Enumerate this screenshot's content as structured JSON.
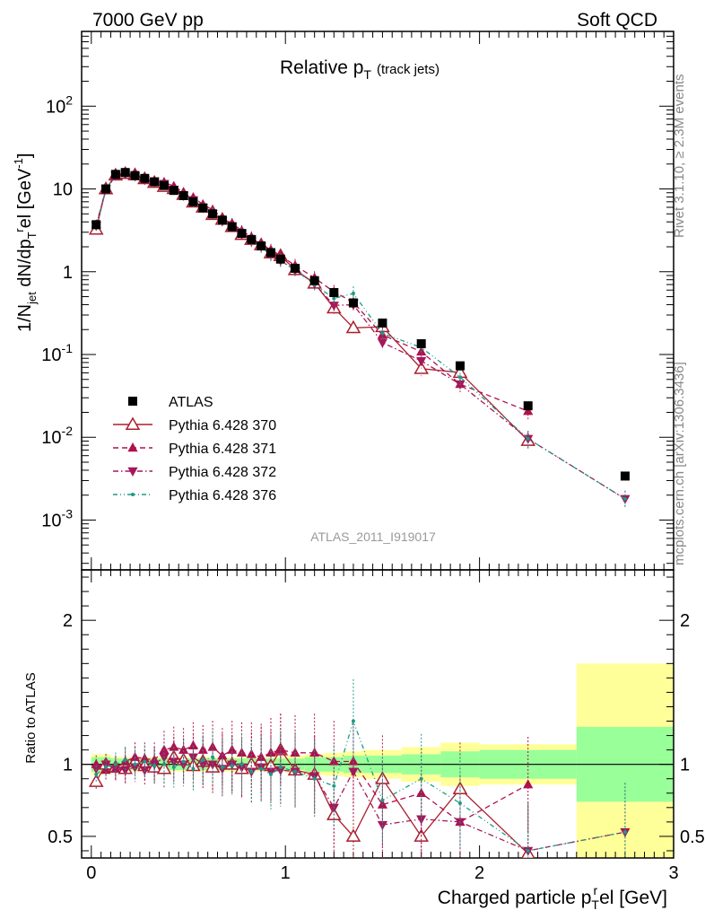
{
  "header": {
    "left": "7000 GeV pp",
    "right": "Soft QCD"
  },
  "side_text": {
    "rivet": "Rivet 3.1.10, ≥ 2.3M events",
    "mcplots": "mcplots.cern.ch [arXiv:1306.3436]"
  },
  "chart_data": {
    "type": "scatter",
    "title": "Relative p",
    "title_sub": "T",
    "title_suffix": "(track jets)",
    "analysis_tag": "ATLAS_2011_I919017",
    "xlabel": "Charged particle p",
    "xlabel_sub": "T",
    "xlabel_sup": "r",
    "xlabel_suffix": "el [GeV]",
    "ylabel_parts": [
      "1/N",
      "jet",
      " dN/dp",
      "T",
      "r",
      "el [GeV",
      "-1",
      "]"
    ],
    "ratio_ylabel": "Ratio to ATLAS",
    "xlim": [
      -0.05,
      3.0
    ],
    "ylim": [
      0.00025,
      800
    ],
    "yscale": "log",
    "ratio_ylim": [
      0.35,
      2.35
    ],
    "x_ticks": [
      "0",
      "1",
      "2",
      "3"
    ],
    "y_ticks": [
      {
        "base": "10",
        "exp": "-3",
        "v": 0.001
      },
      {
        "base": "10",
        "exp": "-2",
        "v": 0.01
      },
      {
        "base": "10",
        "exp": "-1",
        "v": 0.1
      },
      {
        "base": "1",
        "exp": "",
        "v": 1
      },
      {
        "base": "10",
        "exp": "",
        "v": 10
      },
      {
        "base": "10",
        "exp": "2",
        "v": 100
      }
    ],
    "ratio_ticks": [
      "0.5",
      "1",
      "2"
    ],
    "x": [
      0.025,
      0.075,
      0.125,
      0.175,
      0.225,
      0.275,
      0.325,
      0.375,
      0.425,
      0.475,
      0.525,
      0.575,
      0.625,
      0.675,
      0.725,
      0.775,
      0.825,
      0.875,
      0.925,
      0.975,
      1.05,
      1.15,
      1.25,
      1.35,
      1.5,
      1.7,
      1.9,
      2.25,
      2.75
    ],
    "x_bins": [
      [
        0.0,
        0.05
      ],
      [
        0.05,
        0.1
      ],
      [
        0.1,
        0.15
      ],
      [
        0.15,
        0.2
      ],
      [
        0.2,
        0.25
      ],
      [
        0.25,
        0.3
      ],
      [
        0.3,
        0.35
      ],
      [
        0.35,
        0.4
      ],
      [
        0.4,
        0.45
      ],
      [
        0.45,
        0.5
      ],
      [
        0.5,
        0.55
      ],
      [
        0.55,
        0.6
      ],
      [
        0.6,
        0.65
      ],
      [
        0.65,
        0.7
      ],
      [
        0.7,
        0.75
      ],
      [
        0.75,
        0.8
      ],
      [
        0.8,
        0.85
      ],
      [
        0.85,
        0.9
      ],
      [
        0.9,
        0.95
      ],
      [
        0.95,
        1.0
      ],
      [
        1.0,
        1.1
      ],
      [
        1.1,
        1.2
      ],
      [
        1.2,
        1.3
      ],
      [
        1.3,
        1.4
      ],
      [
        1.4,
        1.6
      ],
      [
        1.6,
        1.8
      ],
      [
        1.8,
        2.0
      ],
      [
        2.0,
        2.5
      ],
      [
        2.5,
        3.0
      ]
    ],
    "band_inner": [
      0.05,
      0.05,
      0.04,
      0.04,
      0.04,
      0.04,
      0.04,
      0.04,
      0.04,
      0.04,
      0.04,
      0.04,
      0.04,
      0.04,
      0.04,
      0.04,
      0.04,
      0.04,
      0.04,
      0.04,
      0.04,
      0.05,
      0.05,
      0.06,
      0.06,
      0.07,
      0.09,
      0.1,
      0.26
    ],
    "band_outer": [
      0.07,
      0.07,
      0.05,
      0.05,
      0.05,
      0.05,
      0.05,
      0.05,
      0.05,
      0.05,
      0.05,
      0.05,
      0.05,
      0.05,
      0.05,
      0.05,
      0.05,
      0.05,
      0.05,
      0.05,
      0.06,
      0.07,
      0.08,
      0.09,
      0.1,
      0.12,
      0.15,
      0.14,
      0.7
    ],
    "series": [
      {
        "name": "ATLAS",
        "kind": "data",
        "color": "#000000",
        "values": [
          3.7,
          10.0,
          15.0,
          15.8,
          14.5,
          13.4,
          12.2,
          11.0,
          9.6,
          8.3,
          7.0,
          5.9,
          5.0,
          4.2,
          3.5,
          2.9,
          2.45,
          2.05,
          1.7,
          1.42,
          1.1,
          0.78,
          0.56,
          0.42,
          0.24,
          0.135,
          0.073,
          0.024,
          0.0034
        ]
      },
      {
        "name": "Pythia 6.428 370",
        "kind": "mc",
        "color": "#aa1f2e",
        "marker": "open-triangle-up",
        "dash": "",
        "ratio": [
          0.88,
          1.0,
          0.98,
          0.97,
          1.02,
          0.99,
          0.98,
          0.97,
          1.05,
          1.03,
          0.99,
          1.02,
          0.98,
          1.02,
          1.0,
          0.97,
          1.0,
          1.03,
          0.99,
          1.1,
          0.96,
          0.93,
          0.65,
          0.5,
          0.9,
          0.5,
          0.83,
          0.38,
          null
        ]
      },
      {
        "name": "Pythia 6.428 371",
        "kind": "mc",
        "color": "#b0104e",
        "marker": "filled-triangle-up",
        "dash": "6,4",
        "ratio": [
          1.0,
          0.96,
          0.97,
          1.02,
          1.05,
          1.04,
          1.03,
          1.1,
          1.12,
          1.1,
          1.13,
          1.1,
          1.12,
          1.06,
          1.1,
          1.08,
          1.07,
          1.05,
          1.08,
          1.1,
          1.08,
          1.08,
          1.02,
          1.02,
          0.72,
          0.8,
          0.6,
          0.86,
          null
        ]
      },
      {
        "name": "Pythia 6.428 372",
        "kind": "mc",
        "color": "#a5175a",
        "marker": "filled-triangle-down",
        "dash": "6,3,1.5,3",
        "ratio": [
          0.97,
          1.0,
          0.97,
          0.96,
          0.98,
          0.96,
          1.0,
          1.05,
          1.02,
          1.0,
          1.05,
          1.0,
          1.0,
          0.97,
          1.0,
          0.98,
          0.95,
          0.98,
          0.95,
          0.96,
          0.95,
          0.92,
          0.7,
          0.95,
          0.58,
          0.62,
          0.6,
          0.4,
          0.53
        ]
      },
      {
        "name": "Pythia 6.428 376",
        "kind": "mc",
        "color": "#1e9a86",
        "marker": "small-dot",
        "dash": "5,3,1,3,1,3",
        "ratio": [
          0.93,
          0.98,
          1.0,
          1.03,
          1.0,
          1.02,
          0.99,
          1.0,
          0.98,
          1.02,
          0.97,
          1.03,
          1.05,
          0.98,
          0.99,
          1.0,
          0.95,
          0.97,
          0.93,
          0.98,
          0.95,
          0.9,
          0.85,
          1.3,
          0.75,
          0.9,
          0.73,
          0.4,
          0.53
        ]
      }
    ],
    "legend_position": "center-left"
  }
}
